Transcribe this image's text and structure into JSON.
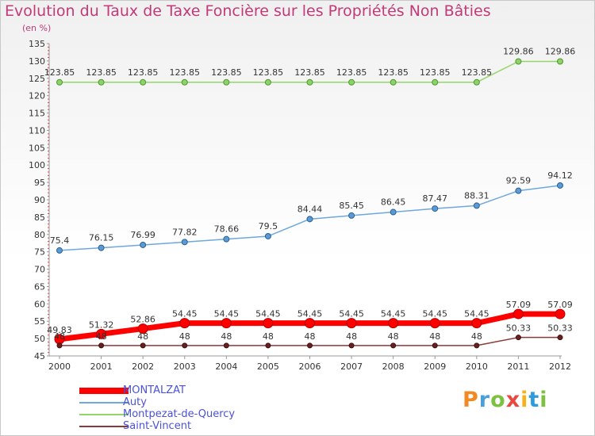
{
  "header": {
    "title": "Evolution du Taux de Taxe Foncière sur les Propriétés Non Bâties",
    "unit": "(en %)"
  },
  "logo": {
    "text": "Proxiti"
  },
  "chart_data": {
    "type": "line",
    "title": "Evolution du Taux de Taxe Foncière sur les Propriétés Non Bâties",
    "ylabel": "(en %)",
    "xlabel": "",
    "x": [
      "2000",
      "2001",
      "2002",
      "2003",
      "2004",
      "2005",
      "2006",
      "2007",
      "2008",
      "2009",
      "2010",
      "2011",
      "2012"
    ],
    "ylim": [
      45,
      135
    ],
    "yticks": [
      45,
      50,
      55,
      60,
      65,
      70,
      75,
      80,
      85,
      90,
      95,
      100,
      105,
      110,
      115,
      120,
      125,
      130,
      135
    ],
    "grid": false,
    "legend": "bottom-left",
    "series": [
      {
        "name": "Montpezat-de-Quercy",
        "color": "#8fd16a",
        "values": [
          123.85,
          123.85,
          123.85,
          123.85,
          123.85,
          123.85,
          123.85,
          123.85,
          123.85,
          123.85,
          123.85,
          129.86,
          129.86
        ],
        "labels": [
          "123.85",
          "123.85",
          "123.85",
          "123.85",
          "123.85",
          "123.85",
          "123.85",
          "123.85",
          "123.85",
          "123.85",
          "123.85",
          "129.86",
          "129.86"
        ]
      },
      {
        "name": "Auty",
        "color": "#5b9bd5",
        "values": [
          75.4,
          76.15,
          76.99,
          77.82,
          78.66,
          79.5,
          84.44,
          85.45,
          86.45,
          87.47,
          88.31,
          92.59,
          94.12
        ],
        "labels": [
          "75.4",
          "76.15",
          "76.99",
          "77.82",
          "78.66",
          "79.5",
          "84.44",
          "85.45",
          "86.45",
          "87.47",
          "88.31",
          "92.59",
          "94.12"
        ]
      },
      {
        "name": "MONTALZAT",
        "color": "#ff0000",
        "values": [
          49.83,
          51.32,
          52.86,
          54.45,
          54.45,
          54.45,
          54.45,
          54.45,
          54.45,
          54.45,
          54.45,
          57.09,
          57.09
        ],
        "labels": [
          "49.83",
          "51.32",
          "52.86",
          "54.45",
          "54.45",
          "54.45",
          "54.45",
          "54.45",
          "54.45",
          "54.45",
          "54.45",
          "57.09",
          "57.09"
        ]
      },
      {
        "name": "Saint-Vincent",
        "color": "#8b3a3a",
        "values": [
          48,
          48,
          48,
          48,
          48,
          48,
          48,
          48,
          48,
          48,
          48,
          50.33,
          50.33
        ],
        "labels": [
          "48",
          "48",
          "48",
          "48",
          "48",
          "48",
          "48",
          "48",
          "48",
          "48",
          "48",
          "50.33",
          "50.33"
        ]
      }
    ]
  },
  "legend": {
    "items": [
      {
        "label": "MONTALZAT",
        "color": "#ff0000"
      },
      {
        "label": "Auty",
        "color": "#6fa8dc"
      },
      {
        "label": "Montpezat-de-Quercy",
        "color": "#93d46b"
      },
      {
        "label": "Saint-Vincent",
        "color": "#8b3a3a"
      }
    ]
  }
}
